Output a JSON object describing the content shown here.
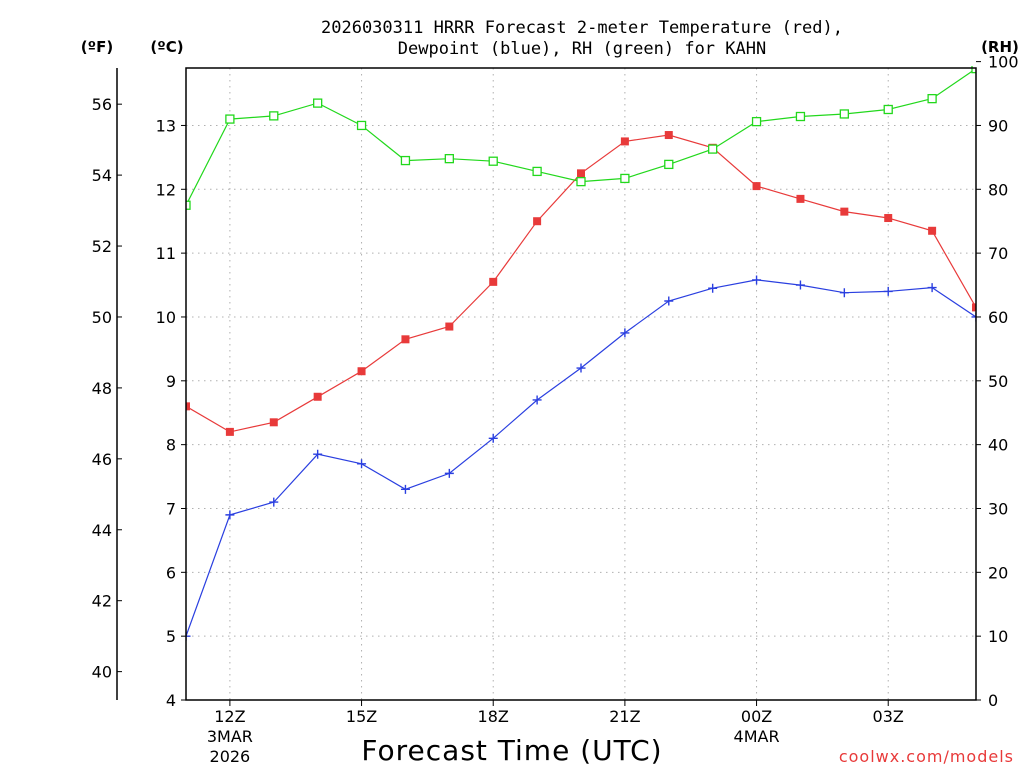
{
  "chart_data": {
    "type": "line",
    "title_line1": "2026030311 HRRR Forecast 2-meter Temperature (red),",
    "title_line2": "Dewpoint (blue), RH (green) for KAHN",
    "xlabel": "Forecast Time (UTC)",
    "credit": "coolwx.com/models",
    "units": {
      "f": "(ºF)",
      "c": "(ºC)",
      "rh": "(RH)"
    },
    "x_hours": [
      11,
      12,
      13,
      14,
      15,
      16,
      17,
      18,
      19,
      20,
      21,
      22,
      23,
      24,
      25,
      26,
      27,
      28,
      29
    ],
    "xlim": [
      11,
      29
    ],
    "x_ticks": [
      {
        "hour": 12,
        "label": "12Z",
        "sub1": "3MAR",
        "sub2": "2026"
      },
      {
        "hour": 15,
        "label": "15Z",
        "sub1": "",
        "sub2": ""
      },
      {
        "hour": 18,
        "label": "18Z",
        "sub1": "",
        "sub2": ""
      },
      {
        "hour": 21,
        "label": "21Z",
        "sub1": "",
        "sub2": ""
      },
      {
        "hour": 24,
        "label": "00Z",
        "sub1": "4MAR",
        "sub2": ""
      },
      {
        "hour": 27,
        "label": "03Z",
        "sub1": "",
        "sub2": ""
      }
    ],
    "left_axis_celsius": {
      "label": "(ºC)",
      "ylim": [
        4,
        13.9
      ],
      "ticks": [
        "4",
        "5",
        "6",
        "7",
        "8",
        "9",
        "10",
        "11",
        "12",
        "13"
      ]
    },
    "left_axis_fahrenheit": {
      "label": "(ºF)",
      "ticks": [
        "40",
        "42",
        "44",
        "46",
        "48",
        "50",
        "52",
        "54",
        "56"
      ]
    },
    "right_axis_rh": {
      "label": "(RH)",
      "ylim": [
        0,
        99
      ],
      "ticks": [
        "0",
        "10",
        "20",
        "30",
        "40",
        "50",
        "60",
        "70",
        "80",
        "90",
        "100"
      ]
    },
    "series": [
      {
        "name": "2-meter Temperature",
        "color": "#e83a3a",
        "axis": "celsius",
        "marker": "filled-square",
        "values": [
          8.6,
          8.2,
          8.35,
          8.75,
          9.15,
          9.65,
          9.85,
          10.55,
          11.5,
          12.25,
          12.75,
          12.85,
          12.65,
          12.05,
          11.85,
          11.65,
          11.55,
          11.35,
          10.15
        ]
      },
      {
        "name": "Dewpoint",
        "color": "#2a3fe0",
        "axis": "celsius",
        "marker": "plus",
        "values": [
          5.0,
          6.9,
          7.1,
          7.85,
          7.7,
          7.3,
          7.55,
          8.1,
          8.7,
          9.2,
          9.75,
          10.25,
          10.45,
          10.58,
          10.5,
          10.38,
          10.4,
          10.46,
          10.0
        ]
      },
      {
        "name": "RH",
        "color": "#22d81c",
        "axis": "rh",
        "marker": "open-square",
        "values": [
          77.5,
          91,
          91.5,
          93.5,
          90,
          84.5,
          84.8,
          84.4,
          82.8,
          81.2,
          81.7,
          83.9,
          86.3,
          90.6,
          91.4,
          91.8,
          92.5,
          94.2,
          98.9
        ]
      }
    ]
  }
}
